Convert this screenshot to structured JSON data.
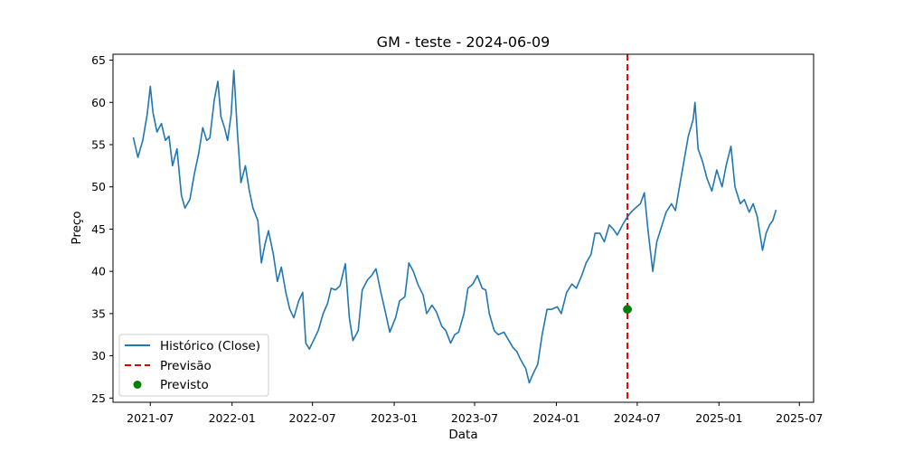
{
  "chart_data": {
    "type": "line",
    "title": "GM - teste - 2024-06-09",
    "xlabel": "Data",
    "ylabel": "Preço",
    "x_ticks": [
      "2021-07",
      "2022-01",
      "2022-07",
      "2023-01",
      "2023-07",
      "2024-01",
      "2024-07",
      "2025-01",
      "2025-07"
    ],
    "y_ticks": [
      25,
      30,
      35,
      40,
      45,
      50,
      55,
      60,
      65
    ],
    "xlim": [
      "2021-04-08",
      "2025-08-02"
    ],
    "ylim": [
      24.5,
      65.7
    ],
    "grid": false,
    "legend_position": "lower-left",
    "series": [
      {
        "name": "Histórico (Close)",
        "kind": "line",
        "color": "#1f77b4",
        "points": [
          [
            "2021-05-24",
            55.8
          ],
          [
            "2021-06-03",
            53.5
          ],
          [
            "2021-06-14",
            55.5
          ],
          [
            "2021-06-24",
            58.6
          ],
          [
            "2021-07-01",
            61.9
          ],
          [
            "2021-07-07",
            58.8
          ],
          [
            "2021-07-16",
            56.5
          ],
          [
            "2021-07-26",
            57.5
          ],
          [
            "2021-08-04",
            55.5
          ],
          [
            "2021-08-12",
            56.0
          ],
          [
            "2021-08-20",
            52.5
          ],
          [
            "2021-08-30",
            54.5
          ],
          [
            "2021-09-09",
            49.0
          ],
          [
            "2021-09-17",
            47.5
          ],
          [
            "2021-09-28",
            48.5
          ],
          [
            "2021-10-08",
            51.5
          ],
          [
            "2021-10-18",
            54.0
          ],
          [
            "2021-10-27",
            57.0
          ],
          [
            "2021-11-05",
            55.5
          ],
          [
            "2021-11-12",
            55.8
          ],
          [
            "2021-11-22",
            60.3
          ],
          [
            "2021-11-30",
            62.5
          ],
          [
            "2021-12-07",
            58.3
          ],
          [
            "2021-12-15",
            57.0
          ],
          [
            "2021-12-22",
            55.5
          ],
          [
            "2021-12-30",
            58.6
          ],
          [
            "2022-01-05",
            63.8
          ],
          [
            "2022-01-13",
            56.5
          ],
          [
            "2022-01-21",
            50.5
          ],
          [
            "2022-01-31",
            52.5
          ],
          [
            "2022-02-09",
            49.5
          ],
          [
            "2022-02-17",
            47.5
          ],
          [
            "2022-02-28",
            46.0
          ],
          [
            "2022-03-08",
            41.0
          ],
          [
            "2022-03-16",
            43.2
          ],
          [
            "2022-03-24",
            44.8
          ],
          [
            "2022-04-04",
            42.0
          ],
          [
            "2022-04-13",
            38.8
          ],
          [
            "2022-04-22",
            40.5
          ],
          [
            "2022-05-02",
            37.5
          ],
          [
            "2022-05-11",
            35.5
          ],
          [
            "2022-05-20",
            34.5
          ],
          [
            "2022-05-31",
            36.5
          ],
          [
            "2022-06-09",
            37.5
          ],
          [
            "2022-06-16",
            31.5
          ],
          [
            "2022-06-24",
            30.8
          ],
          [
            "2022-07-05",
            32.0
          ],
          [
            "2022-07-14",
            33.0
          ],
          [
            "2022-07-25",
            35.0
          ],
          [
            "2022-08-04",
            36.2
          ],
          [
            "2022-08-12",
            38.0
          ],
          [
            "2022-08-22",
            37.8
          ],
          [
            "2022-09-01",
            38.3
          ],
          [
            "2022-09-13",
            40.9
          ],
          [
            "2022-09-22",
            34.5
          ],
          [
            "2022-09-30",
            31.8
          ],
          [
            "2022-10-12",
            33.0
          ],
          [
            "2022-10-21",
            37.8
          ],
          [
            "2022-11-02",
            39.0
          ],
          [
            "2022-11-11",
            39.5
          ],
          [
            "2022-11-21",
            40.3
          ],
          [
            "2022-12-02",
            37.5
          ],
          [
            "2022-12-12",
            35.2
          ],
          [
            "2022-12-22",
            32.8
          ],
          [
            "2023-01-04",
            34.5
          ],
          [
            "2023-01-13",
            36.5
          ],
          [
            "2023-01-25",
            37.0
          ],
          [
            "2023-02-03",
            41.0
          ],
          [
            "2023-02-13",
            40.0
          ],
          [
            "2023-02-23",
            38.5
          ],
          [
            "2023-03-07",
            37.2
          ],
          [
            "2023-03-15",
            35.0
          ],
          [
            "2023-03-27",
            36.0
          ],
          [
            "2023-04-06",
            35.2
          ],
          [
            "2023-04-18",
            33.5
          ],
          [
            "2023-04-27",
            33.0
          ],
          [
            "2023-05-08",
            31.5
          ],
          [
            "2023-05-17",
            32.5
          ],
          [
            "2023-05-26",
            32.8
          ],
          [
            "2023-06-07",
            35.0
          ],
          [
            "2023-06-16",
            38.0
          ],
          [
            "2023-06-27",
            38.5
          ],
          [
            "2023-07-07",
            39.5
          ],
          [
            "2023-07-18",
            38.0
          ],
          [
            "2023-07-26",
            37.8
          ],
          [
            "2023-08-03",
            35.0
          ],
          [
            "2023-08-14",
            33.0
          ],
          [
            "2023-08-23",
            32.5
          ],
          [
            "2023-09-05",
            32.8
          ],
          [
            "2023-09-14",
            32.0
          ],
          [
            "2023-09-25",
            31.0
          ],
          [
            "2023-10-04",
            30.5
          ],
          [
            "2023-10-13",
            29.5
          ],
          [
            "2023-10-24",
            28.5
          ],
          [
            "2023-11-01",
            26.8
          ],
          [
            "2023-11-09",
            27.8
          ],
          [
            "2023-11-20",
            29.0
          ],
          [
            "2023-11-30",
            32.5
          ],
          [
            "2023-12-11",
            35.5
          ],
          [
            "2023-12-21",
            35.5
          ],
          [
            "2024-01-03",
            35.8
          ],
          [
            "2024-01-12",
            35.0
          ],
          [
            "2024-01-24",
            37.5
          ],
          [
            "2024-02-05",
            38.5
          ],
          [
            "2024-02-15",
            38.0
          ],
          [
            "2024-02-27",
            39.5
          ],
          [
            "2024-03-08",
            41.0
          ],
          [
            "2024-03-19",
            42.0
          ],
          [
            "2024-03-28",
            44.5
          ],
          [
            "2024-04-08",
            44.5
          ],
          [
            "2024-04-18",
            43.5
          ],
          [
            "2024-04-29",
            45.5
          ],
          [
            "2024-05-08",
            45.0
          ],
          [
            "2024-05-17",
            44.3
          ],
          [
            "2024-05-29",
            45.5
          ],
          [
            "2024-06-07",
            46.3
          ],
          [
            "2024-06-17",
            47.0
          ],
          [
            "2024-06-27",
            47.5
          ],
          [
            "2024-07-08",
            48.0
          ],
          [
            "2024-07-17",
            49.3
          ],
          [
            "2024-07-25",
            45.0
          ],
          [
            "2024-08-05",
            40.0
          ],
          [
            "2024-08-14",
            43.5
          ],
          [
            "2024-08-23",
            45.0
          ],
          [
            "2024-09-04",
            47.0
          ],
          [
            "2024-09-16",
            48.0
          ],
          [
            "2024-09-25",
            47.2
          ],
          [
            "2024-10-04",
            50.0
          ],
          [
            "2024-10-15",
            53.3
          ],
          [
            "2024-10-24",
            56.0
          ],
          [
            "2024-11-04",
            58.0
          ],
          [
            "2024-11-08",
            60.0
          ],
          [
            "2024-11-15",
            54.5
          ],
          [
            "2024-11-25",
            53.0
          ],
          [
            "2024-12-05",
            51.0
          ],
          [
            "2024-12-16",
            49.5
          ],
          [
            "2024-12-27",
            52.0
          ],
          [
            "2025-01-08",
            50.0
          ],
          [
            "2025-01-17",
            52.5
          ],
          [
            "2025-01-28",
            54.8
          ],
          [
            "2025-02-06",
            50.0
          ],
          [
            "2025-02-18",
            48.0
          ],
          [
            "2025-02-27",
            48.5
          ],
          [
            "2025-03-10",
            47.0
          ],
          [
            "2025-03-19",
            48.0
          ],
          [
            "2025-03-28",
            46.5
          ],
          [
            "2025-04-03",
            44.5
          ],
          [
            "2025-04-09",
            42.5
          ],
          [
            "2025-04-17",
            44.5
          ],
          [
            "2025-04-25",
            45.5
          ],
          [
            "2025-05-02",
            46.0
          ],
          [
            "2025-05-09",
            47.2
          ]
        ]
      },
      {
        "name": "Previsão",
        "kind": "vline",
        "color": "#e00000",
        "x": "2024-06-09"
      },
      {
        "name": "Previsto",
        "kind": "scatter",
        "color": "#008000",
        "points": [
          [
            "2024-06-09",
            35.5
          ]
        ]
      }
    ]
  }
}
